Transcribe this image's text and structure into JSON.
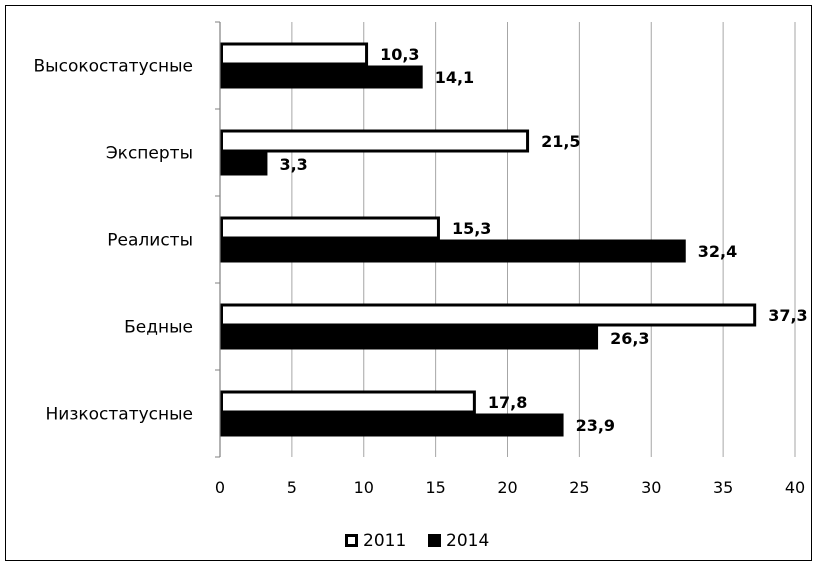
{
  "chart_data": {
    "type": "bar",
    "orientation": "horizontal",
    "categories": [
      "Высокостатусные",
      "Эксперты",
      "Реалисты",
      "Бедные",
      "Низкостатусные"
    ],
    "series": [
      {
        "name": "2011",
        "values": [
          10.3,
          21.5,
          15.3,
          37.3,
          17.8
        ],
        "labels": [
          "10,3",
          "21,5",
          "15,3",
          "37,3",
          "17,8"
        ],
        "fill": "#ffffff",
        "stroke": "#000000"
      },
      {
        "name": "2014",
        "values": [
          14.1,
          3.3,
          32.4,
          26.3,
          23.9
        ],
        "labels": [
          "14,1",
          "3,3",
          "32,4",
          "26,3",
          "23,9"
        ],
        "fill": "#000000",
        "stroke": "#000000"
      }
    ],
    "xlim": [
      0,
      40
    ],
    "xticks": [
      0,
      5,
      10,
      15,
      20,
      25,
      30,
      35,
      40
    ],
    "grid": true,
    "legend": "bottom"
  }
}
